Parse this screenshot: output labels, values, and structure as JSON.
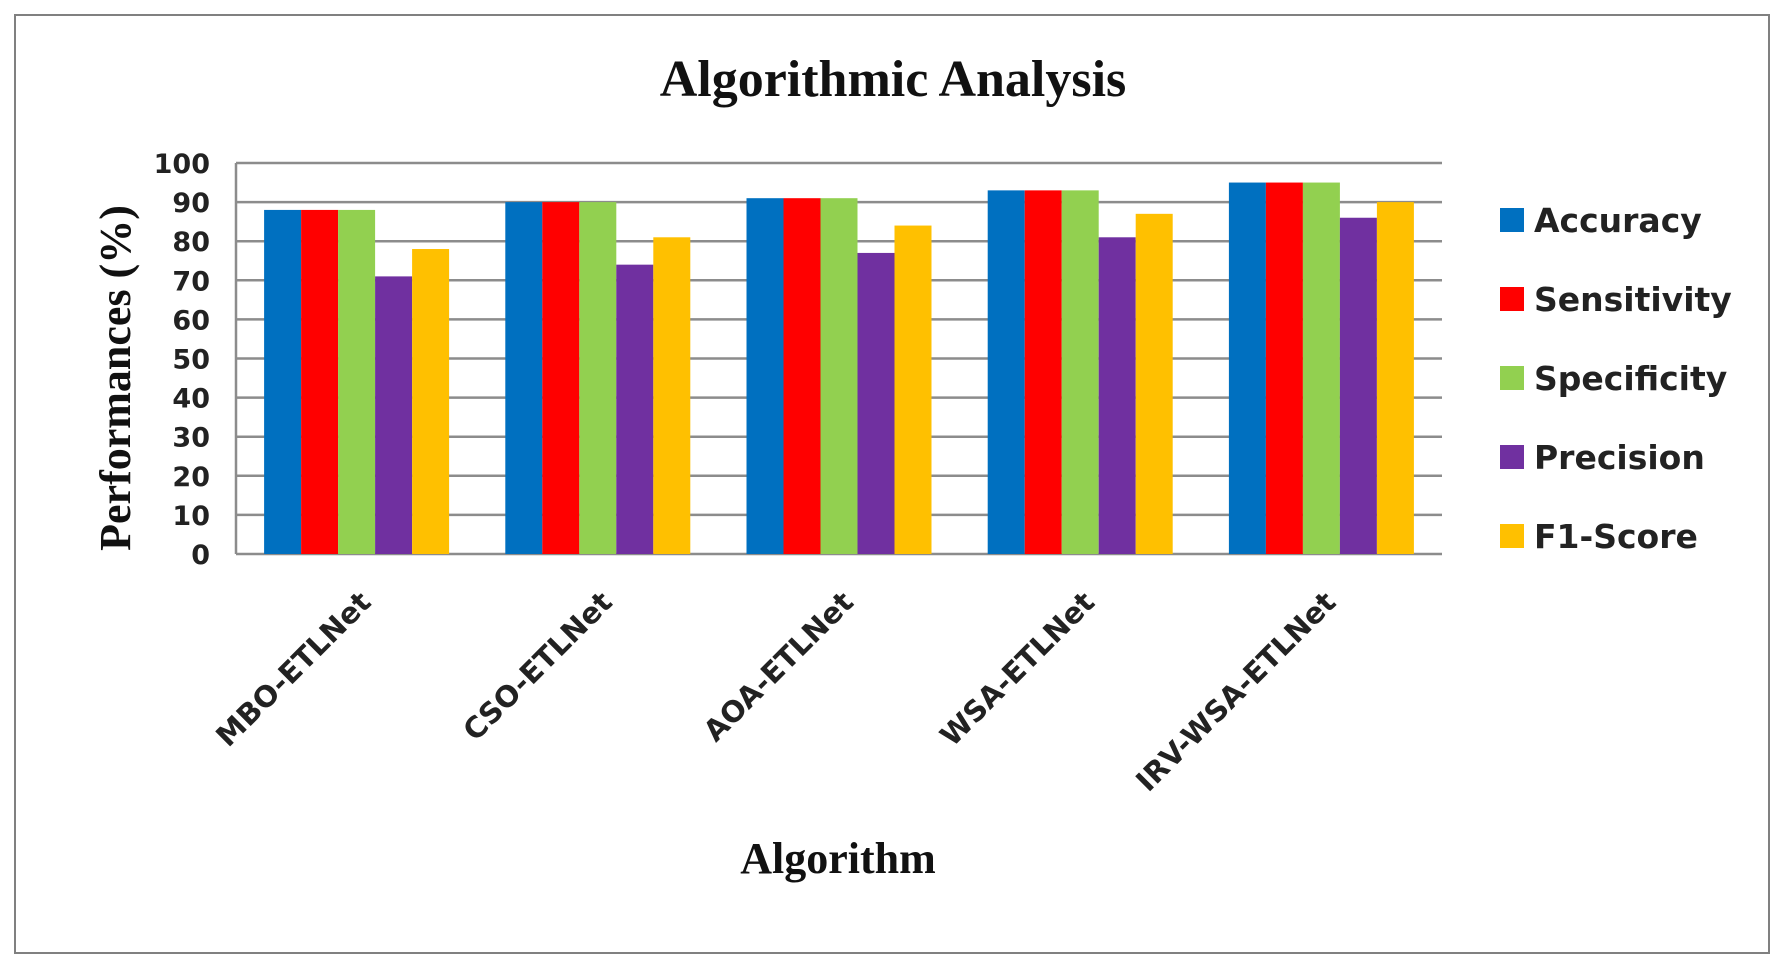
{
  "chart_data": {
    "type": "bar",
    "title": "Algorithmic Analysis",
    "xlabel": "Algorithm",
    "ylabel": "Performances (%)",
    "ylim": [
      0,
      100
    ],
    "yticks": [
      0,
      10,
      20,
      30,
      40,
      50,
      60,
      70,
      80,
      90,
      100
    ],
    "grid": true,
    "legend_position": "right",
    "categories": [
      "MBO-ETLNet",
      "CSO-ETLNet",
      "AOA-ETLNet",
      "WSA-ETLNet",
      "IRV-WSA-ETLNet"
    ],
    "series": [
      {
        "name": "Accuracy",
        "color": "#0070C0",
        "values": [
          88,
          90,
          91,
          93,
          95
        ]
      },
      {
        "name": "Sensitivity",
        "color": "#FF0000",
        "values": [
          88,
          90,
          91,
          93,
          95
        ]
      },
      {
        "name": "Specificity",
        "color": "#92D050",
        "values": [
          88,
          90,
          91,
          93,
          95
        ]
      },
      {
        "name": "Precision",
        "color": "#7030A0",
        "values": [
          71,
          74,
          77,
          81,
          86
        ]
      },
      {
        "name": "F1-Score",
        "color": "#FFC000",
        "values": [
          78,
          81,
          84,
          87,
          90
        ]
      }
    ]
  }
}
